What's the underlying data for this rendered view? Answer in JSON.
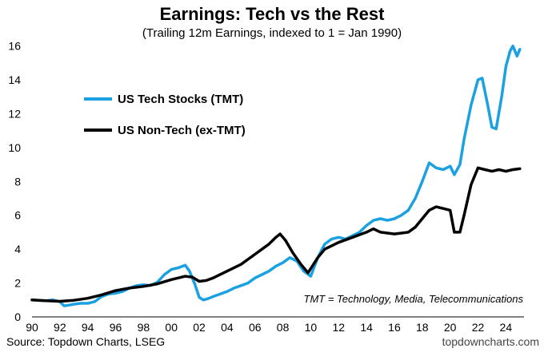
{
  "chart_data": {
    "type": "line",
    "title": "Earnings: Tech vs the Rest",
    "subtitle": "(Trailing 12m Earnings, indexed to 1 = Jan 1990)",
    "xlabel": "",
    "ylabel": "",
    "xlim": [
      1990,
      2025.3
    ],
    "ylim": [
      0,
      16.5
    ],
    "x_tick_labels": [
      "90",
      "92",
      "94",
      "96",
      "98",
      "00",
      "02",
      "04",
      "06",
      "08",
      "10",
      "12",
      "14",
      "16",
      "18",
      "20",
      "22",
      "24"
    ],
    "x_tick_values": [
      1990,
      1992,
      1994,
      1996,
      1998,
      2000,
      2002,
      2004,
      2006,
      2008,
      2010,
      2012,
      2014,
      2016,
      2018,
      2020,
      2022,
      2024
    ],
    "y_ticks": [
      0,
      2,
      4,
      6,
      8,
      10,
      12,
      14,
      16
    ],
    "grid": false,
    "legend": "upper-left",
    "annotation": "TMT = Technology, Media, Telecommunications",
    "source": "Source: Topdown Charts, LSEG",
    "watermark": "topdowncharts.com",
    "series": [
      {
        "name": "US Tech Stocks (TMT)",
        "color": "#1ba1e2",
        "points": [
          [
            1990.0,
            1.0
          ],
          [
            1990.5,
            0.97
          ],
          [
            1991.0,
            0.95
          ],
          [
            1991.5,
            1.0
          ],
          [
            1992.0,
            0.9
          ],
          [
            1992.3,
            0.65
          ],
          [
            1992.7,
            0.7
          ],
          [
            1993.0,
            0.75
          ],
          [
            1993.5,
            0.8
          ],
          [
            1994.0,
            0.8
          ],
          [
            1994.5,
            0.9
          ],
          [
            1995.0,
            1.2
          ],
          [
            1995.5,
            1.35
          ],
          [
            1996.0,
            1.4
          ],
          [
            1996.5,
            1.5
          ],
          [
            1997.0,
            1.7
          ],
          [
            1997.5,
            1.85
          ],
          [
            1998.0,
            1.9
          ],
          [
            1998.5,
            1.85
          ],
          [
            1999.0,
            2.05
          ],
          [
            1999.5,
            2.5
          ],
          [
            2000.0,
            2.8
          ],
          [
            2000.5,
            2.9
          ],
          [
            2001.0,
            3.05
          ],
          [
            2001.3,
            2.7
          ],
          [
            2001.7,
            1.9
          ],
          [
            2002.0,
            1.15
          ],
          [
            2002.3,
            1.0
          ],
          [
            2002.7,
            1.1
          ],
          [
            2003.0,
            1.2
          ],
          [
            2003.5,
            1.35
          ],
          [
            2004.0,
            1.5
          ],
          [
            2004.5,
            1.7
          ],
          [
            2005.0,
            1.85
          ],
          [
            2005.5,
            2.0
          ],
          [
            2006.0,
            2.3
          ],
          [
            2006.5,
            2.5
          ],
          [
            2007.0,
            2.7
          ],
          [
            2007.5,
            3.0
          ],
          [
            2008.0,
            3.2
          ],
          [
            2008.5,
            3.5
          ],
          [
            2009.0,
            3.3
          ],
          [
            2009.5,
            2.7
          ],
          [
            2010.0,
            2.4
          ],
          [
            2010.5,
            3.5
          ],
          [
            2011.0,
            4.3
          ],
          [
            2011.5,
            4.6
          ],
          [
            2012.0,
            4.7
          ],
          [
            2012.5,
            4.6
          ],
          [
            2013.0,
            4.8
          ],
          [
            2013.5,
            5.0
          ],
          [
            2014.0,
            5.4
          ],
          [
            2014.5,
            5.7
          ],
          [
            2015.0,
            5.8
          ],
          [
            2015.5,
            5.7
          ],
          [
            2016.0,
            5.8
          ],
          [
            2016.5,
            6.0
          ],
          [
            2017.0,
            6.3
          ],
          [
            2017.5,
            7.0
          ],
          [
            2018.0,
            8.0
          ],
          [
            2018.5,
            9.1
          ],
          [
            2019.0,
            8.8
          ],
          [
            2019.5,
            8.7
          ],
          [
            2020.0,
            8.9
          ],
          [
            2020.3,
            8.4
          ],
          [
            2020.7,
            9.0
          ],
          [
            2021.0,
            10.5
          ],
          [
            2021.5,
            12.5
          ],
          [
            2022.0,
            14.0
          ],
          [
            2022.3,
            14.1
          ],
          [
            2022.7,
            12.5
          ],
          [
            2023.0,
            11.2
          ],
          [
            2023.3,
            11.1
          ],
          [
            2023.7,
            13.0
          ],
          [
            2024.0,
            14.8
          ],
          [
            2024.3,
            15.7
          ],
          [
            2024.5,
            16.0
          ],
          [
            2024.8,
            15.4
          ],
          [
            2025.0,
            15.8
          ]
        ]
      },
      {
        "name": "US Non-Tech (ex-TMT)",
        "color": "#000000",
        "points": [
          [
            1990.0,
            1.0
          ],
          [
            1991.0,
            0.95
          ],
          [
            1992.0,
            0.92
          ],
          [
            1993.0,
            0.98
          ],
          [
            1994.0,
            1.1
          ],
          [
            1995.0,
            1.3
          ],
          [
            1996.0,
            1.55
          ],
          [
            1997.0,
            1.7
          ],
          [
            1998.0,
            1.8
          ],
          [
            1999.0,
            1.95
          ],
          [
            2000.0,
            2.2
          ],
          [
            2000.5,
            2.3
          ],
          [
            2001.0,
            2.4
          ],
          [
            2001.5,
            2.35
          ],
          [
            2002.0,
            2.1
          ],
          [
            2002.5,
            2.15
          ],
          [
            2003.0,
            2.3
          ],
          [
            2004.0,
            2.7
          ],
          [
            2005.0,
            3.1
          ],
          [
            2006.0,
            3.7
          ],
          [
            2007.0,
            4.3
          ],
          [
            2007.5,
            4.7
          ],
          [
            2007.8,
            4.9
          ],
          [
            2008.2,
            4.5
          ],
          [
            2008.7,
            3.8
          ],
          [
            2009.3,
            3.1
          ],
          [
            2009.8,
            2.6
          ],
          [
            2010.5,
            3.5
          ],
          [
            2011.0,
            4.0
          ],
          [
            2012.0,
            4.4
          ],
          [
            2013.0,
            4.7
          ],
          [
            2014.0,
            5.0
          ],
          [
            2014.5,
            5.2
          ],
          [
            2015.0,
            5.0
          ],
          [
            2016.0,
            4.9
          ],
          [
            2017.0,
            5.0
          ],
          [
            2017.5,
            5.3
          ],
          [
            2018.0,
            5.8
          ],
          [
            2018.5,
            6.3
          ],
          [
            2019.0,
            6.5
          ],
          [
            2019.5,
            6.4
          ],
          [
            2020.0,
            6.3
          ],
          [
            2020.3,
            5.0
          ],
          [
            2020.7,
            5.0
          ],
          [
            2021.0,
            6.0
          ],
          [
            2021.5,
            7.8
          ],
          [
            2022.0,
            8.8
          ],
          [
            2022.5,
            8.7
          ],
          [
            2023.0,
            8.6
          ],
          [
            2023.5,
            8.7
          ],
          [
            2024.0,
            8.6
          ],
          [
            2024.5,
            8.7
          ],
          [
            2025.0,
            8.75
          ]
        ]
      }
    ]
  }
}
